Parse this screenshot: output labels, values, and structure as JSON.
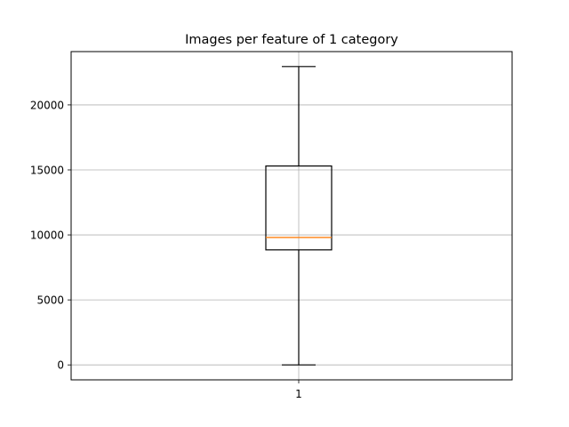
{
  "chart_data": {
    "type": "box",
    "title": "Images per feature of 1 category",
    "xlabel": "",
    "ylabel": "",
    "categories": [
      "1"
    ],
    "boxes": [
      {
        "category": "1",
        "whisker_low": 0,
        "q1": 8850,
        "median": 9800,
        "q3": 15300,
        "whisker_high": 22950
      }
    ],
    "ylim": [
      -1150,
      24100
    ],
    "yticks": [
      0,
      5000,
      10000,
      15000,
      20000
    ],
    "ytick_labels": [
      "0",
      "5000",
      "10000",
      "15000",
      "20000"
    ],
    "grid": true,
    "colors": {
      "box": "#000000",
      "median": "#ff7f0e",
      "grid": "#b0b0b0"
    }
  }
}
